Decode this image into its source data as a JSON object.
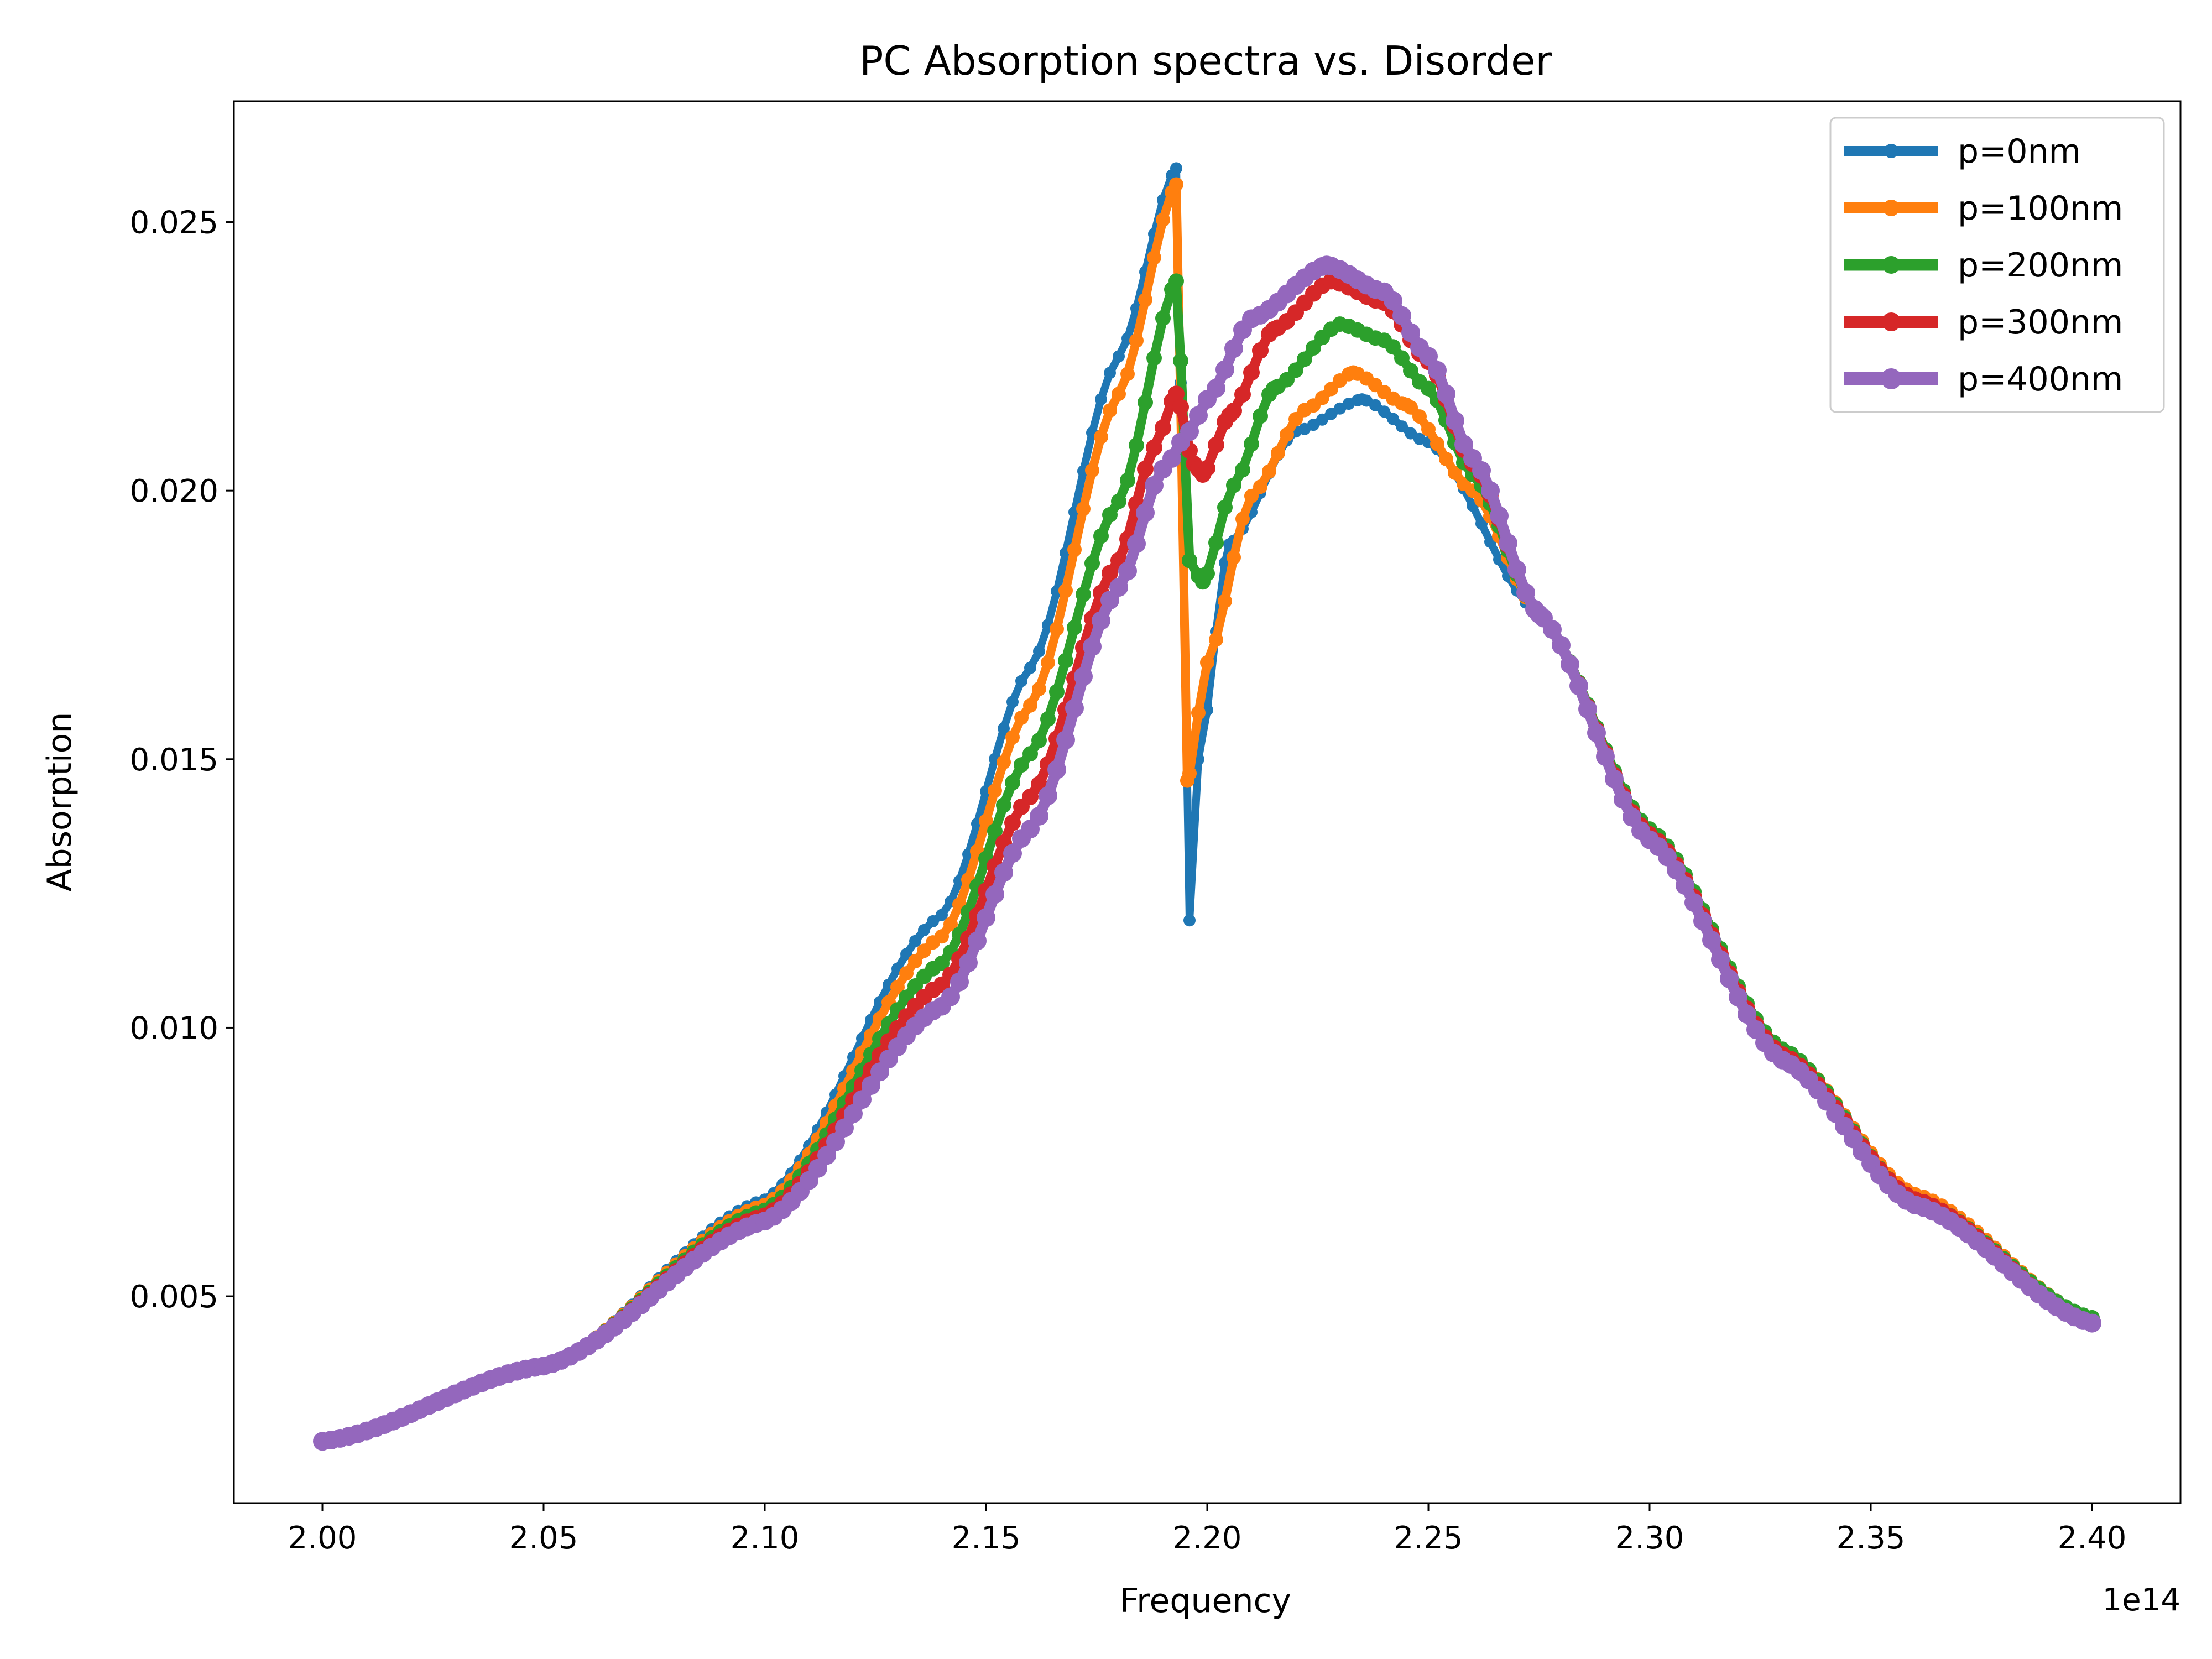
{
  "chart_data": {
    "type": "line",
    "title": "PC Absorption spectra vs. Disorder",
    "xlabel": "Frequency",
    "ylabel": "Absorption",
    "x_offset_label": "1e14",
    "xlim": [
      1.98,
      2.42
    ],
    "ylim": [
      0.00115,
      0.02725
    ],
    "x_ticks": [
      2.0,
      2.05,
      2.1,
      2.15,
      2.2,
      2.25,
      2.3,
      2.35,
      2.4
    ],
    "x_tick_labels": [
      "2.00",
      "2.05",
      "2.10",
      "2.15",
      "2.20",
      "2.25",
      "2.30",
      "2.35",
      "2.40"
    ],
    "y_ticks": [
      0.005,
      0.01,
      0.015,
      0.02,
      0.025
    ],
    "y_tick_labels": [
      "0.005",
      "0.010",
      "0.015",
      "0.020",
      "0.025"
    ],
    "grid": false,
    "legend_position": "top-right",
    "marker": "circle",
    "x_start": 2.0,
    "x_end": 2.4,
    "x_step": 0.002,
    "series": [
      {
        "name": "p=0nm",
        "color": "#1f77b4",
        "keypoints": [
          [
            2.0,
            0.0023
          ],
          [
            2.05,
            0.0037
          ],
          [
            2.1,
            0.0068
          ],
          [
            2.14,
            0.0121
          ],
          [
            2.16,
            0.0167
          ],
          [
            2.18,
            0.0225
          ],
          [
            2.193,
            0.026
          ],
          [
            2.196,
            0.012
          ],
          [
            2.198,
            0.015
          ],
          [
            2.205,
            0.019
          ],
          [
            2.22,
            0.0211
          ],
          [
            2.235,
            0.0217
          ],
          [
            2.25,
            0.0209
          ],
          [
            2.275,
            0.0177
          ],
          [
            2.3,
            0.0137
          ],
          [
            2.33,
            0.0096
          ],
          [
            2.36,
            0.0069
          ],
          [
            2.4,
            0.0046
          ]
        ]
      },
      {
        "name": "p=100nm",
        "color": "#ff7f0e",
        "keypoints": [
          [
            2.0,
            0.0023
          ],
          [
            2.05,
            0.0037
          ],
          [
            2.1,
            0.0067
          ],
          [
            2.14,
            0.0117
          ],
          [
            2.16,
            0.016
          ],
          [
            2.18,
            0.0218
          ],
          [
            2.193,
            0.0257
          ],
          [
            2.1955,
            0.0146
          ],
          [
            2.2,
            0.0168
          ],
          [
            2.21,
            0.0199
          ],
          [
            2.222,
            0.0215
          ],
          [
            2.233,
            0.0222
          ],
          [
            2.245,
            0.0216
          ],
          [
            2.26,
            0.02
          ],
          [
            2.275,
            0.0177
          ],
          [
            2.3,
            0.0137
          ],
          [
            2.33,
            0.0096
          ],
          [
            2.36,
            0.0069
          ],
          [
            2.4,
            0.0046
          ]
        ]
      },
      {
        "name": "p=200nm",
        "color": "#2ca02c",
        "keypoints": [
          [
            2.0,
            0.0023
          ],
          [
            2.05,
            0.0037
          ],
          [
            2.1,
            0.0066
          ],
          [
            2.14,
            0.0112
          ],
          [
            2.16,
            0.0151
          ],
          [
            2.18,
            0.0198
          ],
          [
            2.193,
            0.0239
          ],
          [
            2.196,
            0.0187
          ],
          [
            2.199,
            0.0183
          ],
          [
            2.206,
            0.0201
          ],
          [
            2.215,
            0.0219
          ],
          [
            2.23,
            0.0231
          ],
          [
            2.24,
            0.0228
          ],
          [
            2.25,
            0.0219
          ],
          [
            2.26,
            0.0203
          ],
          [
            2.275,
            0.0177
          ],
          [
            2.3,
            0.0137
          ],
          [
            2.33,
            0.0096
          ],
          [
            2.36,
            0.0068
          ],
          [
            2.4,
            0.0046
          ]
        ]
      },
      {
        "name": "p=300nm",
        "color": "#d62728",
        "keypoints": [
          [
            2.0,
            0.0023
          ],
          [
            2.05,
            0.0037
          ],
          [
            2.1,
            0.0065
          ],
          [
            2.14,
            0.0108
          ],
          [
            2.16,
            0.0143
          ],
          [
            2.18,
            0.0187
          ],
          [
            2.188,
            0.0208
          ],
          [
            2.193,
            0.0218
          ],
          [
            2.197,
            0.0205
          ],
          [
            2.199,
            0.0203
          ],
          [
            2.205,
            0.0214
          ],
          [
            2.215,
            0.023
          ],
          [
            2.228,
            0.0239
          ],
          [
            2.24,
            0.0235
          ],
          [
            2.25,
            0.0224
          ],
          [
            2.26,
            0.0205
          ],
          [
            2.275,
            0.0177
          ],
          [
            2.3,
            0.0136
          ],
          [
            2.33,
            0.0095
          ],
          [
            2.36,
            0.0068
          ],
          [
            2.4,
            0.0045
          ]
        ]
      },
      {
        "name": "p=400nm",
        "color": "#9467bd",
        "keypoints": [
          [
            2.0,
            0.0023
          ],
          [
            2.05,
            0.0037
          ],
          [
            2.1,
            0.0064
          ],
          [
            2.14,
            0.0104
          ],
          [
            2.16,
            0.0137
          ],
          [
            2.18,
            0.0182
          ],
          [
            2.19,
            0.0204
          ],
          [
            2.196,
            0.0211
          ],
          [
            2.2,
            0.0217
          ],
          [
            2.21,
            0.0232
          ],
          [
            2.227,
            0.0242
          ],
          [
            2.24,
            0.0237
          ],
          [
            2.25,
            0.0225
          ],
          [
            2.26,
            0.0206
          ],
          [
            2.275,
            0.0177
          ],
          [
            2.3,
            0.0135
          ],
          [
            2.33,
            0.0094
          ],
          [
            2.36,
            0.0067
          ],
          [
            2.4,
            0.0045
          ]
        ]
      }
    ]
  }
}
